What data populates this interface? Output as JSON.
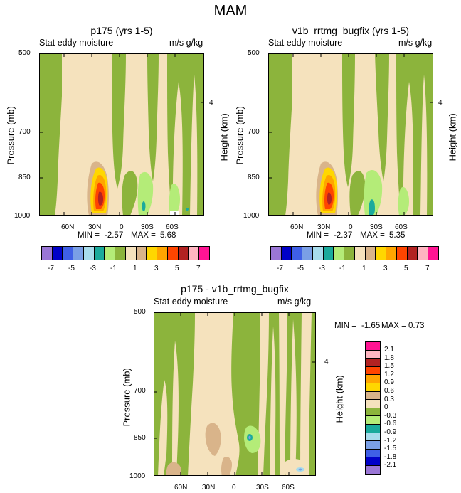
{
  "title": "MAM",
  "palette": [
    "#9a76d6",
    "#0000c8",
    "#3f5fe6",
    "#7a9fe6",
    "#a8dcec",
    "#1aaa9c",
    "#b4ec78",
    "#8cb43c",
    "#f5e2bd",
    "#d9b48a",
    "#ffd700",
    "#ffa500",
    "#ff4500",
    "#b22222",
    "#ffb6c1",
    "#ff1493"
  ],
  "color_levels": [
    "-7",
    "-6",
    "-5",
    "-4",
    "-3",
    "-2",
    "-1",
    "0",
    "1",
    "2",
    "3",
    "4",
    "5",
    "6",
    "7"
  ],
  "diff_levels": [
    "-2.1",
    "-1.8",
    "-1.5",
    "-1.2",
    "-0.9",
    "-0.6",
    "-0.3",
    "0",
    "0.3",
    "0.6",
    "0.9",
    "1.2",
    "1.5",
    "1.8",
    "2.1"
  ],
  "chart_data": [
    {
      "type": "contour",
      "title": "p175 (yrs 1-5)",
      "variable": "Stat eddy moisture",
      "units": "m/s g/kg",
      "ylabel": "Pressure (mb)",
      "ylabel_right": "Height (km)",
      "y_ticks": [
        "500",
        "700",
        "850",
        "1000"
      ],
      "y_ticks_right": [
        "4"
      ],
      "x_ticks": [
        "60N",
        "30N",
        "0",
        "30S",
        "60S"
      ],
      "xlim": [
        90,
        -90
      ],
      "ylim": [
        1000,
        500
      ],
      "min_label": "MIN =",
      "min": "-2.57",
      "max_label": "MAX =",
      "max": "5.68",
      "colorbar_labels": [
        "-7",
        "-5",
        "-3",
        "-1",
        "1",
        "3",
        "5",
        "7"
      ]
    },
    {
      "type": "contour",
      "title": "v1b_rrtmg_bugfix (yrs 1-5)",
      "variable": "Stat eddy moisture",
      "units": "m/s g/kg",
      "ylabel": "Pressure (mb)",
      "ylabel_right": "Height (km)",
      "y_ticks": [
        "500",
        "700",
        "850",
        "1000"
      ],
      "y_ticks_right": [
        "4"
      ],
      "x_ticks": [
        "60N",
        "30N",
        "0",
        "30S",
        "60S"
      ],
      "xlim": [
        90,
        -90
      ],
      "ylim": [
        1000,
        500
      ],
      "min_label": "MIN =",
      "min": "-2.37",
      "max_label": "MAX =",
      "max": "5.35",
      "colorbar_labels": [
        "-7",
        "-5",
        "-3",
        "-1",
        "1",
        "3",
        "5",
        "7"
      ]
    },
    {
      "type": "contour",
      "title": "p175 - v1b_rrtmg_bugfix",
      "variable": "Stat eddy moisture",
      "units": "m/s g/kg",
      "ylabel": "Pressure (mb)",
      "ylabel_right": "Height (km)",
      "y_ticks": [
        "500",
        "700",
        "850",
        "1000"
      ],
      "y_ticks_right": [
        "4"
      ],
      "x_ticks": [
        "60N",
        "30N",
        "0",
        "30S",
        "60S"
      ],
      "xlim": [
        90,
        -90
      ],
      "ylim": [
        1000,
        500
      ],
      "min_label": "MIN =",
      "min": "-1.65",
      "max_label": "MAX =",
      "max": "0.73",
      "colorbar_labels": [
        "2.1",
        "1.8",
        "1.5",
        "1.2",
        "0.9",
        "0.6",
        "0.3",
        "0",
        "-0.3",
        "-0.6",
        "-0.9",
        "-1.2",
        "-1.5",
        "-1.8",
        "-2.1"
      ]
    }
  ]
}
